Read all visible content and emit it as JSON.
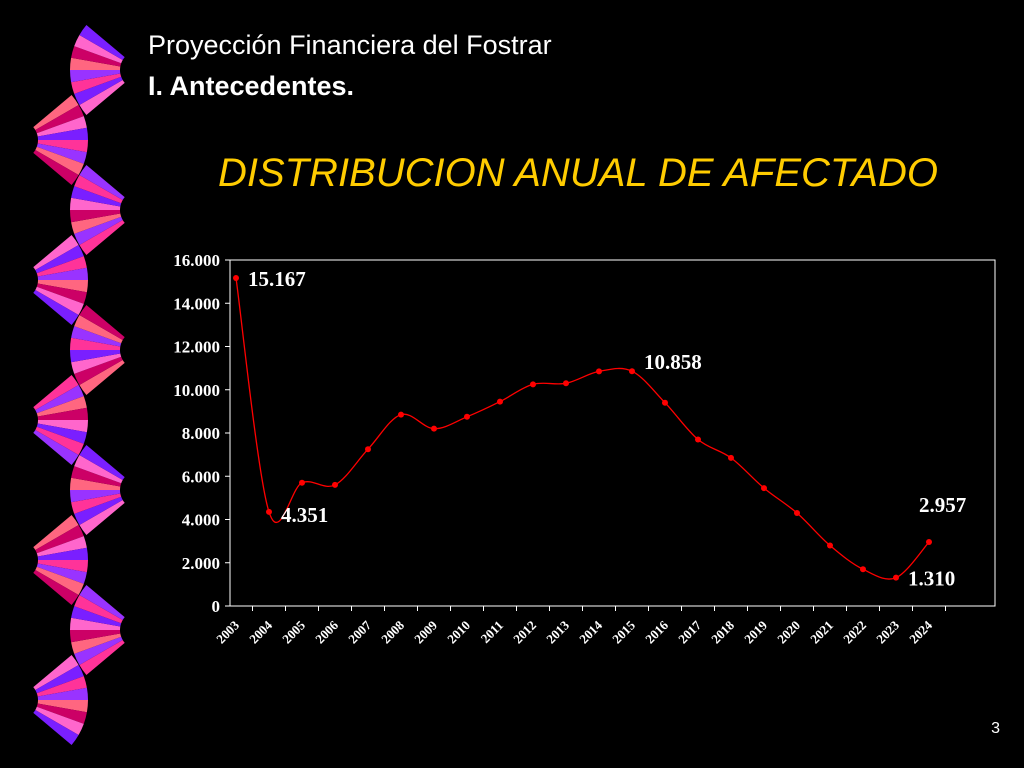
{
  "header": {
    "title": "Proyección Financiera del Fostrar",
    "subtitle": "I. Antecedentes."
  },
  "chart_data": {
    "type": "line",
    "title": "DISTRIBUCION ANUAL DE AFECTADO",
    "categories": [
      "2003",
      "2004",
      "2005",
      "2006",
      "2007",
      "2008",
      "2009",
      "2010",
      "2011",
      "2012",
      "2013",
      "2014",
      "2015",
      "2016",
      "2017",
      "2018",
      "2019",
      "2020",
      "2021",
      "2022",
      "2023",
      "2024"
    ],
    "values": [
      15167,
      4351,
      5700,
      5600,
      7250,
      8850,
      8200,
      8750,
      9450,
      10250,
      10300,
      10850,
      10858,
      9400,
      7700,
      6850,
      5450,
      4300,
      2800,
      1700,
      1310,
      2957
    ],
    "value_labels": [
      "15.167",
      "4.351",
      null,
      null,
      null,
      null,
      null,
      null,
      null,
      null,
      null,
      null,
      "10.858",
      null,
      null,
      null,
      null,
      null,
      null,
      null,
      "1.310",
      "2.957"
    ],
    "color": "#ff0000",
    "ylim": [
      0,
      16000
    ],
    "yticks": [
      0,
      {
        "value": 2000,
        "label": "2.000"
      },
      {
        "value": 4000,
        "label": "4.000"
      },
      {
        "value": 6000,
        "label": "6.000"
      },
      {
        "value": 8000,
        "label": "8.000"
      },
      {
        "value": 10000,
        "label": "10.000"
      },
      {
        "value": 12000,
        "label": "12.000"
      },
      {
        "value": 14000,
        "label": "14.000"
      },
      {
        "value": 16000,
        "label": "16.000"
      }
    ]
  },
  "page_number": "3"
}
